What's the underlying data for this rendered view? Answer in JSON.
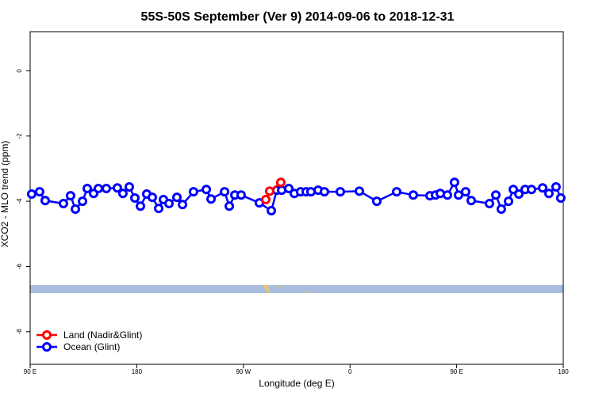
{
  "chart_data": {
    "type": "line",
    "title": "55S-50S September (Ver 9)   2014-09-06 to 2018-12-31",
    "x_label": "Longitude (deg E)",
    "y_label": "XCO2 - MLO trend (ppm)",
    "xlim": [
      90,
      540
    ],
    "ylim": [
      -9,
      1.2
    ],
    "xticks": [
      {
        "value": 90,
        "label": "90 E"
      },
      180,
      {
        "value": 270,
        "label": "90 W"
      },
      {
        "value": 360,
        "label": "0"
      },
      {
        "value": 450,
        "label": "90 E"
      },
      {
        "value": 540,
        "label": "180"
      }
    ],
    "yticks": [
      0,
      -2,
      -4,
      -6,
      -8
    ],
    "legend_position": "bottom-left",
    "series": [
      {
        "name": "Land (Nadir&Glint)",
        "color": "#ff0000",
        "x": [
          288.9,
          292.2,
          301.6
        ],
        "values": [
          -3.95,
          -3.69,
          -3.42
        ]
      },
      {
        "name": "Ocean (Glint)",
        "color": "#0000ff",
        "x": [
          91.3,
          98.0,
          102.7,
          118.1,
          124.1,
          128.2,
          134.2,
          138.2,
          143.6,
          147.6,
          154.3,
          163.6,
          168.3,
          173.7,
          178.4,
          183.1,
          188.4,
          193.1,
          198.5,
          202.5,
          207.2,
          213.9,
          218.6,
          227.9,
          238.7,
          242.7,
          254.1,
          258.1,
          262.8,
          268.1,
          283.5,
          293.6,
          298.2,
          302.3,
          308.3,
          313.0,
          318.3,
          323.0,
          327.0,
          333.1,
          338.4,
          351.8,
          367.9,
          382.6,
          399.4,
          413.4,
          427.5,
          432.2,
          436.2,
          442.2,
          448.2,
          451.6,
          457.6,
          462.3,
          477.7,
          483.1,
          487.7,
          493.8,
          497.8,
          502.5,
          507.8,
          513.2,
          522.6,
          527.9,
          533.9,
          537.9
        ],
        "values": [
          -3.78,
          -3.71,
          -3.98,
          -4.07,
          -3.83,
          -4.24,
          -4.0,
          -3.61,
          -3.76,
          -3.61,
          -3.61,
          -3.59,
          -3.76,
          -3.56,
          -3.9,
          -4.15,
          -3.78,
          -3.88,
          -4.22,
          -3.95,
          -4.07,
          -3.88,
          -4.1,
          -3.71,
          -3.64,
          -3.93,
          -3.71,
          -4.15,
          -3.81,
          -3.81,
          -4.05,
          -4.29,
          -3.66,
          -3.66,
          -3.61,
          -3.76,
          -3.71,
          -3.71,
          -3.71,
          -3.66,
          -3.71,
          -3.71,
          -3.69,
          -4.0,
          -3.71,
          -3.81,
          -3.83,
          -3.81,
          -3.76,
          -3.81,
          -3.42,
          -3.81,
          -3.71,
          -3.98,
          -4.07,
          -3.81,
          -4.24,
          -4.0,
          -3.64,
          -3.78,
          -3.64,
          -3.64,
          -3.59,
          -3.76,
          -3.56,
          -3.9
        ]
      }
    ]
  }
}
